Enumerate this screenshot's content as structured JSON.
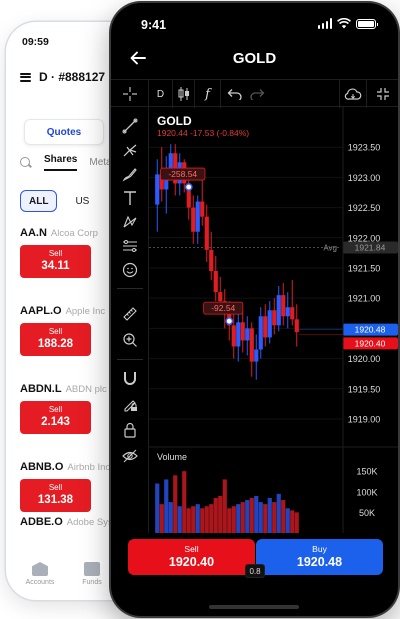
{
  "back_phone": {
    "status_time": "09:59",
    "account_label": "D · #888127",
    "tab_quotes": "Quotes",
    "tab_shares": "Shares",
    "tab_metals": "Meta",
    "filter_all": "ALL",
    "filter_us": "US",
    "sell_label": "Sell",
    "rows": [
      {
        "symbol": "AA.N",
        "name": "Alcoa Corp",
        "sell": "34.11"
      },
      {
        "symbol": "AAPL.O",
        "name": "Apple Inc",
        "sell": "188.28"
      },
      {
        "symbol": "ABDN.L",
        "name": "ABDN plc",
        "sell": "2.143"
      },
      {
        "symbol": "ABNB.O",
        "name": "Airbnb Inc",
        "sell": "131.38"
      },
      {
        "symbol": "ADBE.O",
        "name": "Adobe Sys",
        "sell": null
      }
    ],
    "nav_accounts": "Accounts",
    "nav_funds": "Funds"
  },
  "front_phone": {
    "status_time": "9:41",
    "title": "GOLD",
    "timeframe": "D",
    "toolbar_fx": "f",
    "chart_symbol": "GOLD",
    "chart_quote": "1920.44 -17.53 (-0.84%)",
    "avg_label": "Avg",
    "sell_label": "Sell",
    "sell_price": "1920.40",
    "buy_label": "Buy",
    "buy_price": "1920.48",
    "spread": "0.8",
    "volume_label": "Volume"
  },
  "colors": {
    "sell_red": "#e60f1a",
    "buy_blue": "#1b61ec",
    "up_candle": "#2d5bff",
    "down_candle": "#e11d24",
    "accent_blue": "#1f46d6"
  },
  "chart_data": {
    "type": "candlestick",
    "symbol": "GOLD",
    "y_ticks": [
      "1923.50",
      "1923.00",
      "1922.50",
      "1922.00",
      "1921.50",
      "1921.00",
      "1920.50",
      "1920.00",
      "1919.50",
      "1919.00"
    ],
    "ylim": [
      1918.9,
      1924.0
    ],
    "avg": 1921.84,
    "avg_label": "1921.84",
    "buy_level": 1920.48,
    "buy_level_label": "1920.48",
    "sell_level": 1920.4,
    "sell_level_label": "1920.40",
    "trade_markers": [
      {
        "label": "-258.54",
        "candle": 7,
        "price": 1922.84
      },
      {
        "label": "-92.54",
        "candle": 16,
        "price": 1920.62
      }
    ],
    "candles": [
      {
        "o": 1922.55,
        "h": 1923.3,
        "l": 1922.1,
        "c": 1923.05
      },
      {
        "o": 1923.05,
        "h": 1923.5,
        "l": 1922.6,
        "c": 1922.8
      },
      {
        "o": 1922.8,
        "h": 1923.35,
        "l": 1922.4,
        "c": 1923.1
      },
      {
        "o": 1923.1,
        "h": 1923.55,
        "l": 1922.95,
        "c": 1923.4
      },
      {
        "o": 1923.4,
        "h": 1923.55,
        "l": 1922.7,
        "c": 1922.9
      },
      {
        "o": 1922.9,
        "h": 1923.4,
        "l": 1922.7,
        "c": 1923.25
      },
      {
        "o": 1923.25,
        "h": 1923.3,
        "l": 1922.75,
        "c": 1922.9
      },
      {
        "o": 1922.9,
        "h": 1923.0,
        "l": 1922.3,
        "c": 1922.5
      },
      {
        "o": 1922.5,
        "h": 1922.7,
        "l": 1921.9,
        "c": 1922.1
      },
      {
        "o": 1922.1,
        "h": 1922.7,
        "l": 1921.9,
        "c": 1922.6
      },
      {
        "o": 1922.6,
        "h": 1922.95,
        "l": 1922.2,
        "c": 1922.35
      },
      {
        "o": 1922.35,
        "h": 1922.55,
        "l": 1921.6,
        "c": 1921.8
      },
      {
        "o": 1921.8,
        "h": 1922.1,
        "l": 1921.3,
        "c": 1921.45
      },
      {
        "o": 1921.45,
        "h": 1921.7,
        "l": 1920.95,
        "c": 1921.1
      },
      {
        "o": 1921.1,
        "h": 1921.35,
        "l": 1920.8,
        "c": 1920.95
      },
      {
        "o": 1920.95,
        "h": 1921.15,
        "l": 1920.5,
        "c": 1920.75
      },
      {
        "o": 1920.75,
        "h": 1920.95,
        "l": 1920.3,
        "c": 1920.55
      },
      {
        "o": 1920.55,
        "h": 1920.75,
        "l": 1920.0,
        "c": 1920.2
      },
      {
        "o": 1920.2,
        "h": 1920.75,
        "l": 1919.95,
        "c": 1920.6
      },
      {
        "o": 1920.6,
        "h": 1920.8,
        "l": 1920.1,
        "c": 1920.3
      },
      {
        "o": 1920.3,
        "h": 1920.7,
        "l": 1920.05,
        "c": 1920.5
      },
      {
        "o": 1920.5,
        "h": 1920.6,
        "l": 1919.7,
        "c": 1919.95
      },
      {
        "o": 1919.95,
        "h": 1920.4,
        "l": 1919.65,
        "c": 1920.15
      },
      {
        "o": 1920.15,
        "h": 1920.85,
        "l": 1920.0,
        "c": 1920.7
      },
      {
        "o": 1920.7,
        "h": 1920.9,
        "l": 1920.2,
        "c": 1920.35
      },
      {
        "o": 1920.35,
        "h": 1920.95,
        "l": 1920.25,
        "c": 1920.8
      },
      {
        "o": 1920.8,
        "h": 1921.0,
        "l": 1920.4,
        "c": 1920.55
      },
      {
        "o": 1920.55,
        "h": 1921.2,
        "l": 1920.45,
        "c": 1921.05
      },
      {
        "o": 1921.05,
        "h": 1921.25,
        "l": 1920.55,
        "c": 1920.7
      },
      {
        "o": 1920.7,
        "h": 1921.1,
        "l": 1920.5,
        "c": 1920.85
      },
      {
        "o": 1920.85,
        "h": 1921.3,
        "l": 1920.55,
        "c": 1920.65
      },
      {
        "o": 1920.65,
        "h": 1920.9,
        "l": 1920.2,
        "c": 1920.44
      }
    ],
    "volume": {
      "label": "Volume",
      "ticks": [
        "150K",
        "100K",
        "50K"
      ],
      "ylim": [
        0,
        165000
      ],
      "values": [
        120000,
        70000,
        130000,
        75000,
        140000,
        65000,
        150000,
        60000,
        65000,
        70000,
        60000,
        65000,
        70000,
        85000,
        90000,
        130000,
        60000,
        65000,
        70000,
        75000,
        80000,
        85000,
        90000,
        75000,
        70000,
        85000,
        75000,
        95000,
        80000,
        60000,
        55000,
        50000
      ]
    }
  }
}
